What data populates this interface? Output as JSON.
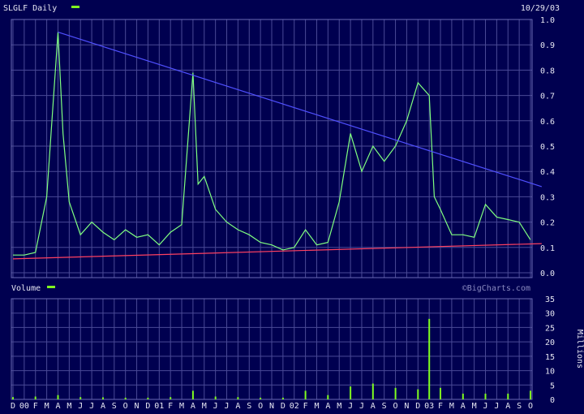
{
  "chart_data": [
    {
      "type": "line",
      "title": "SLGLF Daily",
      "date": "10/29/03",
      "series": [
        {
          "name": "SLGLF Daily",
          "color": "#80ff80",
          "x": [
            "Dec 99",
            "Jan 00",
            "Feb 00",
            "Mar 00",
            "Apr 00",
            "Apr 00",
            "May 00",
            "Jun 00",
            "Jul 00",
            "Aug 00",
            "Sep 00",
            "Oct 00",
            "Nov 00",
            "Dec 00",
            "Jan 01",
            "Feb 01",
            "Mar 01",
            "Apr 01",
            "Apr 01",
            "May 01",
            "Jun 01",
            "Jul 01",
            "Aug 01",
            "Sep 01",
            "Oct 01",
            "Nov 01",
            "Dec 01",
            "Jan 02",
            "Feb 02",
            "Mar 02",
            "Apr 02",
            "May 02",
            "Jun 02",
            "Jul 02",
            "Aug 02",
            "Sep 02",
            "Oct 02",
            "Nov 02",
            "Dec 02",
            "Jan 03",
            "Jan 03",
            "Feb 03",
            "Mar 03",
            "Apr 03",
            "May 03",
            "Jun 03",
            "Jul 03",
            "Aug 03",
            "Sep 03",
            "Oct 03"
          ],
          "y": [
            0.07,
            0.07,
            0.08,
            0.3,
            0.95,
            0.55,
            0.28,
            0.15,
            0.2,
            0.16,
            0.13,
            0.17,
            0.14,
            0.15,
            0.11,
            0.16,
            0.19,
            0.79,
            0.35,
            0.38,
            0.25,
            0.2,
            0.17,
            0.15,
            0.12,
            0.11,
            0.09,
            0.1,
            0.17,
            0.11,
            0.12,
            0.28,
            0.55,
            0.4,
            0.5,
            0.44,
            0.5,
            0.6,
            0.75,
            0.7,
            0.3,
            0.25,
            0.15,
            0.15,
            0.14,
            0.27,
            0.22,
            0.21,
            0.2,
            0.13
          ]
        }
      ],
      "trendlines": [
        {
          "color": "#5050ff",
          "from": {
            "x": "Apr 00",
            "y": 0.95
          },
          "to": {
            "x": "Nov 03",
            "y": 0.34
          }
        },
        {
          "color": "#ff4060",
          "from": {
            "x": "Dec 99",
            "y": 0.055
          },
          "to": {
            "x": "Nov 03",
            "y": 0.115
          }
        }
      ],
      "ylim": [
        0,
        1.0
      ],
      "yticks": [
        "0.0",
        "0.1",
        "0.2",
        "0.3",
        "0.4",
        "0.5",
        "0.6",
        "0.7",
        "0.8",
        "0.9",
        "1.0"
      ],
      "ylabel": "",
      "xlabel": "",
      "grid": true,
      "colors": {
        "background": "#000050",
        "grid": "#4a4a96",
        "frame": "#6a6ab4"
      }
    },
    {
      "type": "bar",
      "title": "Volume",
      "watermark": "©BigCharts.com",
      "ylabel": "Millions",
      "ylim": [
        0,
        35
      ],
      "yticks": [
        "0",
        "5",
        "10",
        "15",
        "20",
        "25",
        "30",
        "35"
      ],
      "color": "#80ff20",
      "x": [
        "Dec 99",
        "Feb 00",
        "Apr 00",
        "Jun 00",
        "Aug 00",
        "Oct 00",
        "Dec 00",
        "Feb 01",
        "Apr 01",
        "Jun 01",
        "Aug 01",
        "Oct 01",
        "Dec 01",
        "Feb 02",
        "Apr 02",
        "Jun 02",
        "Aug 02",
        "Oct 02",
        "Dec 02",
        "Jan 03",
        "Feb 03",
        "Apr 03",
        "Jun 03",
        "Aug 03",
        "Oct 03"
      ],
      "values": [
        0.8,
        1.0,
        1.5,
        0.8,
        0.7,
        0.6,
        0.6,
        0.8,
        3.0,
        1.0,
        0.8,
        0.6,
        0.6,
        3.0,
        1.5,
        4.5,
        5.5,
        4.0,
        3.5,
        28,
        4.0,
        2.0,
        2.0,
        2.0,
        3.0
      ],
      "grid": true
    }
  ],
  "x_axis": {
    "tick_labels": [
      "D",
      "00",
      "F",
      "M",
      "A",
      "M",
      "J",
      "J",
      "A",
      "S",
      "O",
      "N",
      "D",
      "01",
      "F",
      "M",
      "A",
      "M",
      "J",
      "J",
      "A",
      "S",
      "O",
      "N",
      "D",
      "02",
      "F",
      "M",
      "A",
      "M",
      "J",
      "J",
      "A",
      "S",
      "O",
      "N",
      "D",
      "03",
      "F",
      "M",
      "A",
      "M",
      "J",
      "J",
      "A",
      "S",
      "O"
    ]
  }
}
